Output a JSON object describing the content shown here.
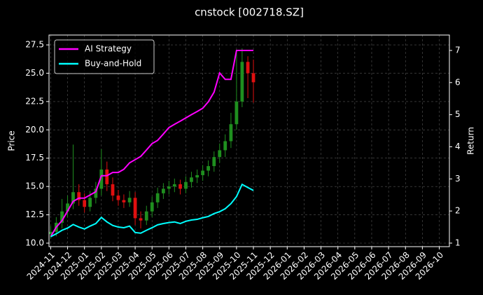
{
  "chart_data": {
    "type": "candlestick",
    "title": "cnstock [002718.SZ]",
    "ylabel": "Price",
    "y2label": "Return",
    "x": [
      0,
      0.33,
      0.67,
      1,
      1.33,
      1.67,
      2,
      2.33,
      2.67,
      3,
      3.33,
      3.67,
      4,
      4.33,
      4.67,
      5,
      5.33,
      5.67,
      6,
      6.33,
      6.67,
      7,
      7.33,
      7.67,
      8,
      8.33,
      8.67,
      9,
      9.33,
      9.67,
      10,
      10.33,
      10.67,
      11,
      11.33,
      11.67,
      12
    ],
    "open": [
      10.8,
      11.0,
      11.8,
      12.8,
      13.5,
      14.5,
      13.8,
      13.2,
      14.0,
      14.8,
      16.5,
      15.2,
      14.2,
      13.8,
      13.6,
      14.0,
      12.2,
      12.0,
      12.8,
      13.6,
      14.4,
      14.8,
      15.0,
      15.2,
      14.8,
      15.4,
      15.8,
      16.0,
      16.4,
      16.8,
      17.6,
      18.2,
      19.0,
      20.5,
      22.5,
      26.0,
      25.0
    ],
    "high": [
      11.5,
      12.3,
      13.9,
      14.2,
      18.7,
      15.2,
      14.4,
      14.6,
      15.4,
      18.3,
      17.2,
      15.8,
      14.7,
      14.3,
      14.6,
      14.5,
      12.8,
      13.3,
      14.1,
      14.9,
      15.3,
      15.5,
      15.7,
      15.6,
      15.9,
      16.3,
      16.5,
      16.9,
      17.3,
      18.1,
      18.8,
      19.6,
      21.5,
      27.0,
      27.2,
      26.5,
      26.2
    ],
    "low": [
      10.4,
      10.6,
      11.3,
      12.3,
      13.0,
      13.3,
      12.7,
      12.8,
      13.5,
      14.2,
      14.6,
      13.7,
      13.3,
      13.1,
      13.2,
      11.6,
      11.3,
      11.6,
      12.3,
      13.1,
      13.9,
      14.3,
      14.5,
      14.3,
      14.4,
      14.9,
      15.3,
      15.5,
      15.9,
      16.3,
      17.1,
      17.6,
      18.4,
      20.0,
      22.0,
      22.8,
      22.4
    ],
    "close": [
      11.0,
      11.8,
      12.8,
      13.5,
      14.5,
      13.8,
      13.2,
      14.0,
      14.8,
      16.5,
      15.2,
      14.2,
      13.8,
      13.6,
      14.0,
      12.2,
      12.0,
      12.8,
      13.6,
      14.4,
      14.8,
      15.0,
      15.2,
      14.8,
      15.4,
      15.8,
      16.0,
      16.4,
      16.8,
      17.6,
      18.2,
      19.0,
      20.5,
      22.5,
      26.0,
      25.0,
      24.2
    ],
    "up_color": "#1f8f1f",
    "down_color": "#e01010",
    "series": [
      {
        "name": "AI Strategy",
        "color": "#ff00ff",
        "axis": "y2",
        "values": [
          1.2,
          1.5,
          1.7,
          2.0,
          2.3,
          2.4,
          2.4,
          2.5,
          2.6,
          3.1,
          3.1,
          3.2,
          3.2,
          3.3,
          3.5,
          3.6,
          3.7,
          3.9,
          4.1,
          4.2,
          4.4,
          4.6,
          4.7,
          4.8,
          4.9,
          5.0,
          5.1,
          5.2,
          5.4,
          5.7,
          6.3,
          6.1,
          6.1,
          7.0,
          7.0,
          7.0,
          7.0
        ]
      },
      {
        "name": "Buy-and-Hold",
        "color": "#00ffff",
        "axis": "y2",
        "values": [
          1.2,
          1.29,
          1.4,
          1.47,
          1.58,
          1.5,
          1.44,
          1.53,
          1.61,
          1.8,
          1.66,
          1.55,
          1.5,
          1.48,
          1.53,
          1.33,
          1.31,
          1.4,
          1.48,
          1.57,
          1.61,
          1.64,
          1.66,
          1.61,
          1.68,
          1.72,
          1.74,
          1.79,
          1.83,
          1.92,
          1.98,
          2.07,
          2.23,
          2.45,
          2.83,
          2.73,
          2.64
        ]
      }
    ],
    "xlim": [
      -0.1,
      23.6
    ],
    "xticks": [
      {
        "value": 0,
        "label": "2024-11"
      },
      {
        "value": 1,
        "label": "2024-12"
      },
      {
        "value": 2,
        "label": "2025-01"
      },
      {
        "value": 3,
        "label": "2025-02"
      },
      {
        "value": 4,
        "label": "2025-03"
      },
      {
        "value": 5,
        "label": "2025-04"
      },
      {
        "value": 6,
        "label": "2025-05"
      },
      {
        "value": 7,
        "label": "2025-06"
      },
      {
        "value": 8,
        "label": "2025-07"
      },
      {
        "value": 9,
        "label": "2025-08"
      },
      {
        "value": 10,
        "label": "2025-09"
      },
      {
        "value": 11,
        "label": "2025-10"
      },
      {
        "value": 12,
        "label": "2025-11"
      },
      {
        "value": 13,
        "label": "2025-12"
      },
      {
        "value": 14,
        "label": "2026-01"
      },
      {
        "value": 15,
        "label": "2026-02"
      },
      {
        "value": 16,
        "label": "2026-03"
      },
      {
        "value": 17,
        "label": "2026-04"
      },
      {
        "value": 18,
        "label": "2026-05"
      },
      {
        "value": 19,
        "label": "2026-06"
      },
      {
        "value": 20,
        "label": "2026-07"
      },
      {
        "value": 21,
        "label": "2026-08"
      },
      {
        "value": 22,
        "label": "2026-09"
      },
      {
        "value": 23,
        "label": "2026-10"
      }
    ],
    "ylim": [
      9.69,
      28.37
    ],
    "yticks": [
      {
        "value": 10,
        "label": "10.0"
      },
      {
        "value": 12.5,
        "label": "12.5"
      },
      {
        "value": 15,
        "label": "15.0"
      },
      {
        "value": 17.5,
        "label": "17.5"
      },
      {
        "value": 20,
        "label": "20.0"
      },
      {
        "value": 22.5,
        "label": "22.5"
      },
      {
        "value": 25,
        "label": "25.0"
      },
      {
        "value": 27.5,
        "label": "27.5"
      }
    ],
    "y2lim": [
      0.89,
      7.48
    ],
    "y2ticks": [
      1,
      2,
      3,
      4,
      5,
      6,
      7
    ],
    "grid": true,
    "legend": "upper left"
  }
}
